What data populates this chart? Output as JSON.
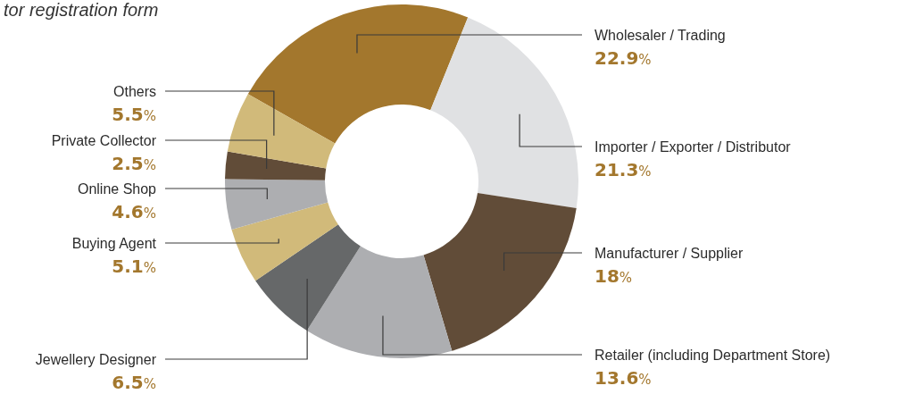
{
  "chart_data": {
    "type": "donut",
    "title": "tor registration form",
    "categories": [
      "Wholesaler / Trading",
      "Importer / Exporter / Distributor",
      "Manufacturer / Supplier",
      "Retailer (including Department Store)",
      "Jewellery Designer",
      "Buying Agent",
      "Online Shop",
      "Private Collector",
      "Others"
    ],
    "values": [
      22.9,
      21.3,
      18,
      13.6,
      6.5,
      5.1,
      4.6,
      2.5,
      5.5
    ],
    "colors": [
      "#a3772d",
      "#e0e1e3",
      "#614c38",
      "#adaeb1",
      "#666869",
      "#d1ba7a",
      "#adaeb1",
      "#614c38",
      "#d1ba7a"
    ],
    "value_labels": [
      "22.9%",
      "21.3%",
      "18%",
      "13.6%",
      "6.5%",
      "5.1%",
      "4.6%",
      "2.5%",
      "5.5%"
    ]
  }
}
